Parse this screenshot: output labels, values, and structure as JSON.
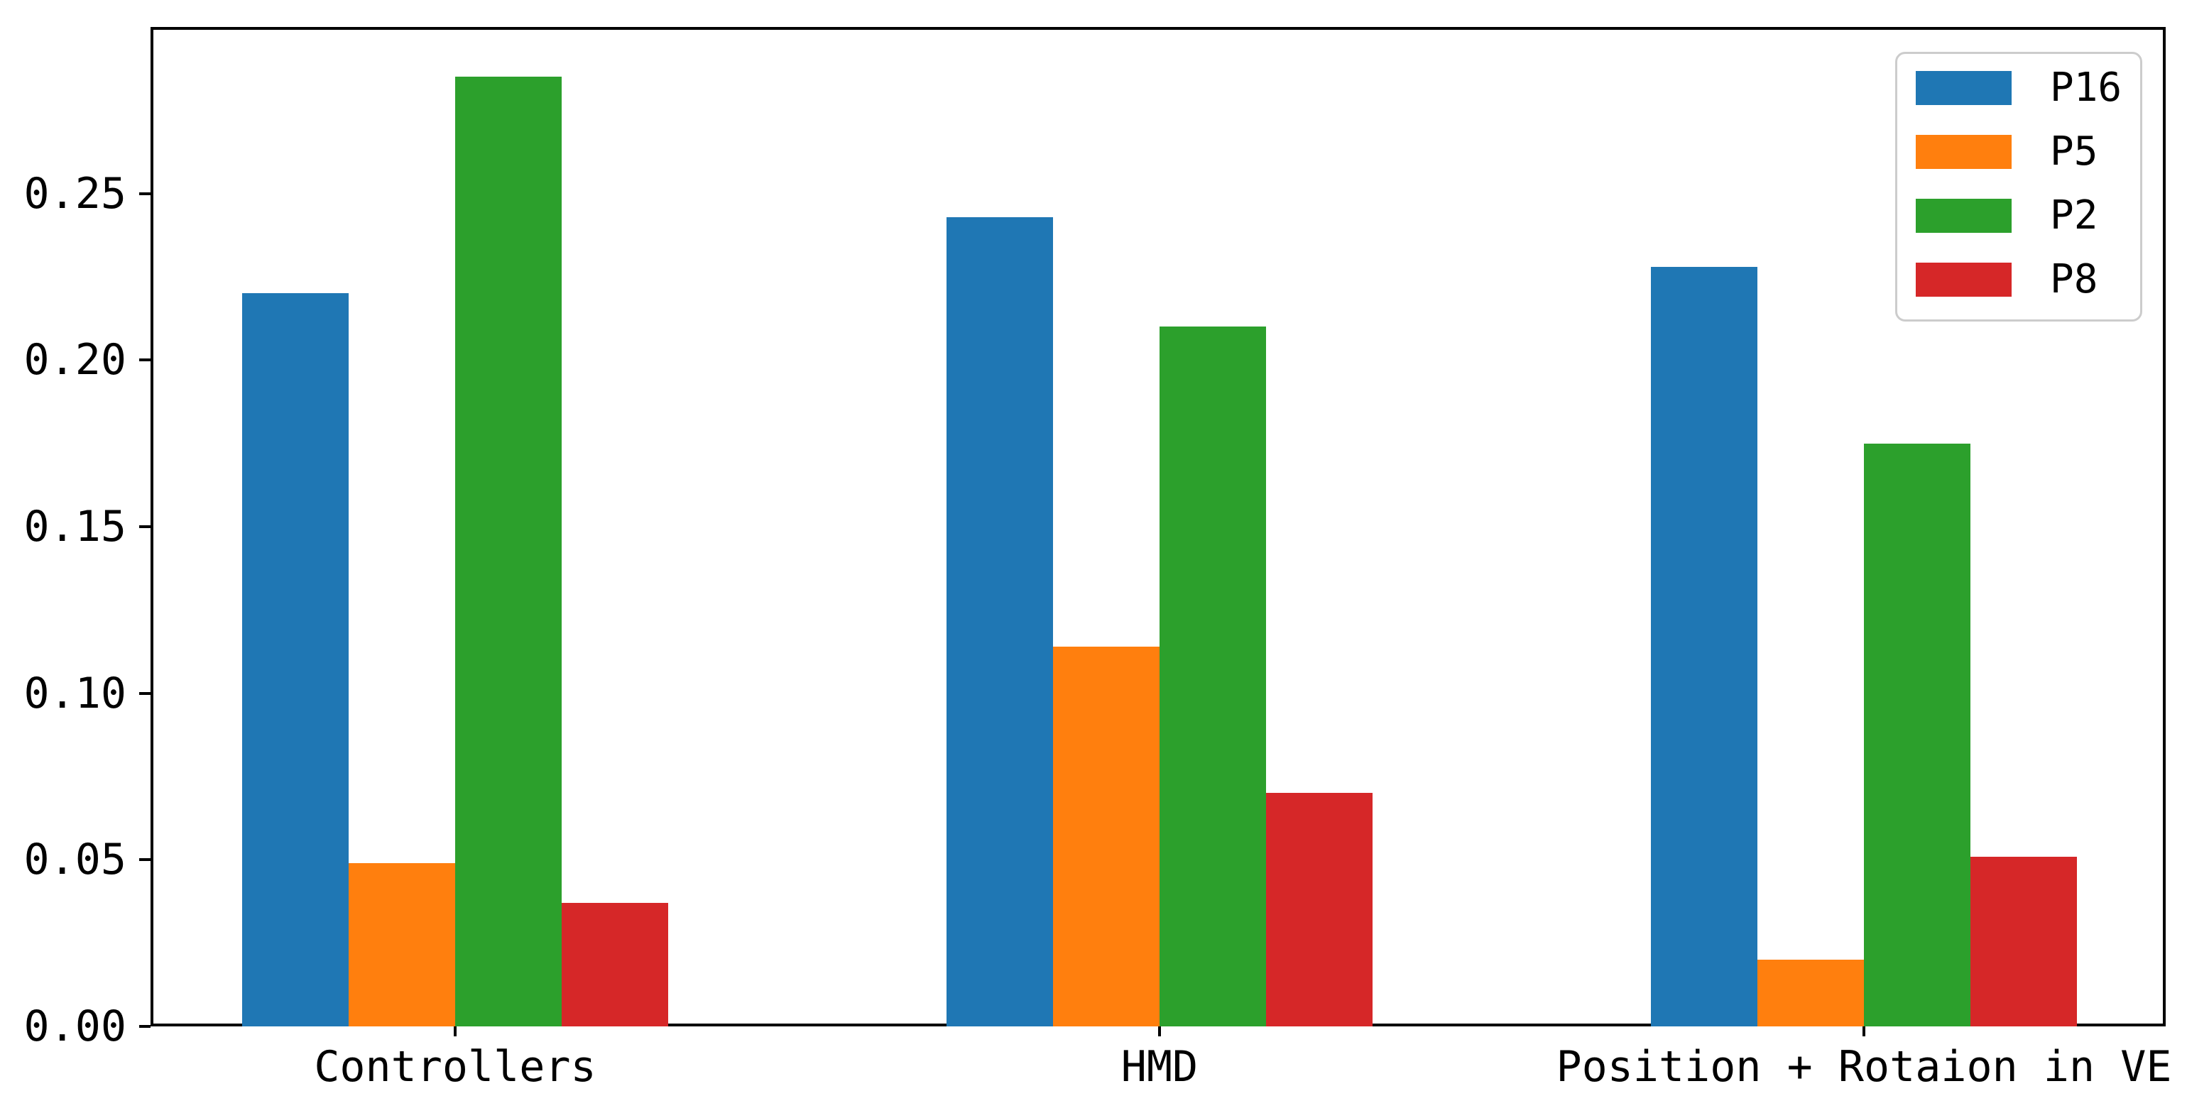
{
  "chart_data": {
    "type": "bar",
    "title": "",
    "xlabel": "",
    "ylabel": "",
    "categories": [
      "Controllers",
      "HMD",
      "Position + Rotaion in VE"
    ],
    "series": [
      {
        "name": "P16",
        "color": "#1f77b4",
        "values": [
          0.22,
          0.243,
          0.228
        ]
      },
      {
        "name": "P5",
        "color": "#ff7f0e",
        "values": [
          0.049,
          0.114,
          0.02
        ]
      },
      {
        "name": "P2",
        "color": "#2ca02c",
        "values": [
          0.285,
          0.21,
          0.175
        ]
      },
      {
        "name": "P8",
        "color": "#d62728",
        "values": [
          0.037,
          0.07,
          0.051
        ]
      }
    ],
    "ylim": [
      0,
      0.3
    ],
    "ytick_values": [
      0.0,
      0.05,
      0.1,
      0.15,
      0.2,
      0.25
    ],
    "ytick_labels": [
      "0.00",
      "0.05",
      "0.10",
      "0.15",
      "0.20",
      "0.25"
    ],
    "grid": false,
    "legend": {
      "position": "upper right",
      "entries": [
        "P16",
        "P5",
        "P2",
        "P8"
      ]
    },
    "colors": {
      "background": "#ffffff",
      "axis": "#000000",
      "legend_border": "#cccccc"
    }
  }
}
